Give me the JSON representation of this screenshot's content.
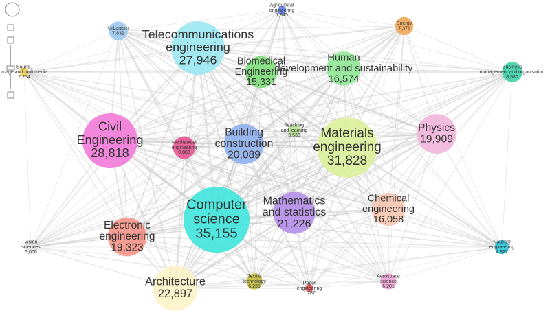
{
  "nodes": [
    {
      "label": [
        "Urbanism"
      ],
      "value": "7,832",
      "color": "#9cc9ee"
    },
    {
      "label": [
        "Agricultural",
        "engineering"
      ],
      "value": "1,845",
      "color": "#5b7fe0"
    },
    {
      "label": [
        "Energy"
      ],
      "value": "7,371",
      "color": "#f0a85a"
    },
    {
      "label": [
        "Telecommunications",
        "engineering"
      ],
      "value": "27,946",
      "color": "#9be8f2"
    },
    {
      "label": [
        "Sound,",
        "image and multimedia"
      ],
      "value": "2,254",
      "color": "#f0d060"
    },
    {
      "label": [
        "Biomedical",
        "Engineering"
      ],
      "value": "15,331",
      "color": "#7fe07a"
    },
    {
      "label": [
        "Human",
        "development and sustainability"
      ],
      "value": "16,574",
      "color": "#8fe896"
    },
    {
      "label": [
        "Business",
        "management and organisation"
      ],
      "value": "8,580",
      "color": "#3fd0a8"
    },
    {
      "label": [
        "Civil",
        "Engineering"
      ],
      "value": "28,818",
      "color": "#f27ad8"
    },
    {
      "label": [
        "Mechanical",
        "engineering"
      ],
      "value": "9,883",
      "color": "#e8558f"
    },
    {
      "label": [
        "Building",
        "construction"
      ],
      "value": "20,089",
      "color": "#8fb0ee"
    },
    {
      "label": [
        "Teaching",
        "and learning"
      ],
      "value": "3,530",
      "color": "#b8e890"
    },
    {
      "label": [
        "Materials",
        "engineering"
      ],
      "value": "31,828",
      "color": "#dcef9a"
    },
    {
      "label": [
        "Physics"
      ],
      "value": "19,909",
      "color": "#f2b6dc"
    },
    {
      "label": [
        "Computer",
        "science"
      ],
      "value": "35,155",
      "color": "#3fe6dc"
    },
    {
      "label": [
        "Mathematics",
        "and statistics"
      ],
      "value": "21,226",
      "color": "#b58ee8"
    },
    {
      "label": [
        "Chemical",
        "engineering"
      ],
      "value": "16,058",
      "color": "#f7c7b0"
    },
    {
      "label": [
        "Electronic",
        "engineering"
      ],
      "value": "19,323",
      "color": "#f6948a"
    },
    {
      "label": [
        "Vision",
        "sciences"
      ],
      "value": "5,000",
      "color": "#e0e0e0"
    },
    {
      "label": [
        "Nautical",
        "engineering"
      ],
      "value": "4,927",
      "color": "#28c4d8"
    },
    {
      "label": [
        "Architecture"
      ],
      "value": "22,897",
      "color": "#fbf3c6"
    },
    {
      "label": [
        "Textile",
        "technology"
      ],
      "value": "6,235",
      "color": "#c8c040"
    },
    {
      "label": [
        "Paper",
        "engineering"
      ],
      "value": "1,287",
      "color": "#e84a4a"
    },
    {
      "label": [
        "Aerospace",
        "science"
      ],
      "value": "6,201",
      "color": "#f2a6d8"
    }
  ]
}
